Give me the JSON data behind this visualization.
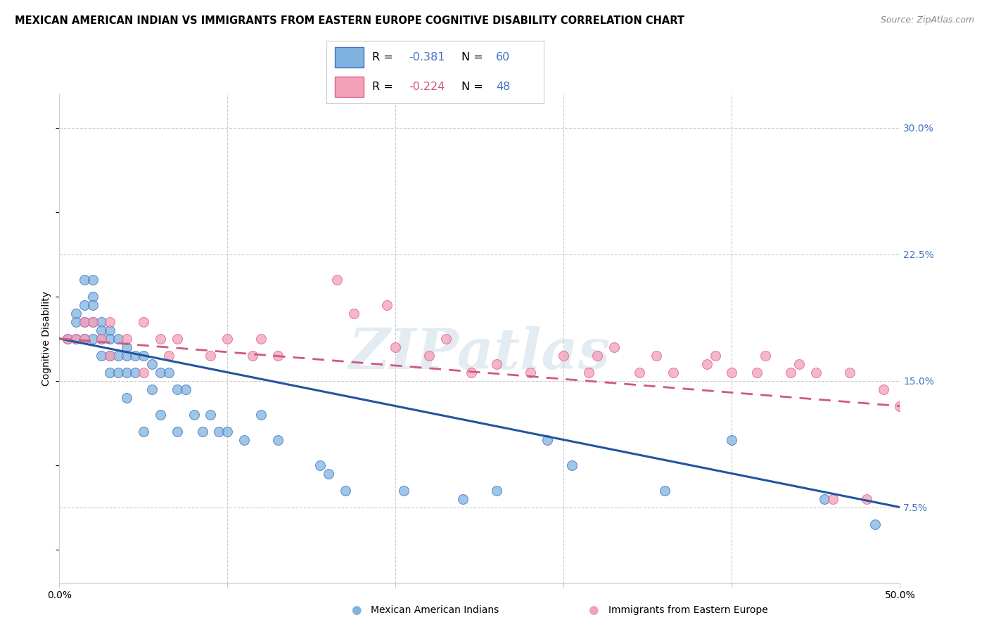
{
  "title": "MEXICAN AMERICAN INDIAN VS IMMIGRANTS FROM EASTERN EUROPE COGNITIVE DISABILITY CORRELATION CHART",
  "source": "Source: ZipAtlas.com",
  "ylabel": "Cognitive Disability",
  "xlim": [
    0.0,
    0.5
  ],
  "ylim": [
    0.03,
    0.32
  ],
  "xticks": [
    0.0,
    0.1,
    0.2,
    0.3,
    0.4,
    0.5
  ],
  "xticklabels": [
    "0.0%",
    "",
    "",
    "",
    "",
    "50.0%"
  ],
  "yticks": [
    0.075,
    0.15,
    0.225,
    0.3
  ],
  "yticklabels": [
    "7.5%",
    "15.0%",
    "22.5%",
    "30.0%"
  ],
  "grid_color": "#cccccc",
  "background_color": "#ffffff",
  "blue_color": "#7fb3e0",
  "pink_color": "#f4a0b8",
  "blue_edge_color": "#4472c4",
  "pink_edge_color": "#e06090",
  "blue_line_color": "#2155a0",
  "pink_line_color": "#d05880",
  "text_blue_color": "#4472c4",
  "text_pink_color": "#d05880",
  "n_blue_color": "#4472c4",
  "r_blue": "-0.381",
  "n_blue": "60",
  "r_pink": "-0.224",
  "n_pink": "48",
  "legend_label_blue": "Mexican American Indians",
  "legend_label_pink": "Immigrants from Eastern Europe",
  "watermark": "ZIPatlas",
  "blue_line_x0": 0.0,
  "blue_line_y0": 0.175,
  "blue_line_x1": 0.5,
  "blue_line_y1": 0.075,
  "pink_line_x0": 0.0,
  "pink_line_y0": 0.175,
  "pink_line_x1": 0.5,
  "pink_line_y1": 0.135,
  "blue_scatter_x": [
    0.005,
    0.01,
    0.01,
    0.01,
    0.015,
    0.015,
    0.015,
    0.015,
    0.02,
    0.02,
    0.02,
    0.02,
    0.02,
    0.025,
    0.025,
    0.025,
    0.025,
    0.03,
    0.03,
    0.03,
    0.03,
    0.035,
    0.035,
    0.035,
    0.04,
    0.04,
    0.04,
    0.04,
    0.045,
    0.045,
    0.05,
    0.05,
    0.055,
    0.055,
    0.06,
    0.06,
    0.065,
    0.07,
    0.07,
    0.075,
    0.08,
    0.085,
    0.09,
    0.095,
    0.1,
    0.11,
    0.12,
    0.13,
    0.155,
    0.16,
    0.17,
    0.205,
    0.24,
    0.26,
    0.29,
    0.305,
    0.36,
    0.4,
    0.455,
    0.485
  ],
  "blue_scatter_y": [
    0.175,
    0.19,
    0.185,
    0.175,
    0.21,
    0.195,
    0.185,
    0.175,
    0.21,
    0.2,
    0.195,
    0.185,
    0.175,
    0.185,
    0.18,
    0.175,
    0.165,
    0.18,
    0.175,
    0.165,
    0.155,
    0.175,
    0.165,
    0.155,
    0.17,
    0.165,
    0.155,
    0.14,
    0.165,
    0.155,
    0.165,
    0.12,
    0.16,
    0.145,
    0.155,
    0.13,
    0.155,
    0.145,
    0.12,
    0.145,
    0.13,
    0.12,
    0.13,
    0.12,
    0.12,
    0.115,
    0.13,
    0.115,
    0.1,
    0.095,
    0.085,
    0.085,
    0.08,
    0.085,
    0.115,
    0.1,
    0.085,
    0.115,
    0.08,
    0.065
  ],
  "pink_scatter_x": [
    0.005,
    0.01,
    0.015,
    0.015,
    0.02,
    0.025,
    0.03,
    0.03,
    0.04,
    0.05,
    0.05,
    0.06,
    0.065,
    0.07,
    0.09,
    0.1,
    0.115,
    0.12,
    0.13,
    0.165,
    0.175,
    0.195,
    0.2,
    0.22,
    0.23,
    0.245,
    0.26,
    0.28,
    0.3,
    0.315,
    0.32,
    0.33,
    0.345,
    0.355,
    0.365,
    0.385,
    0.39,
    0.4,
    0.415,
    0.42,
    0.435,
    0.44,
    0.45,
    0.46,
    0.47,
    0.48,
    0.49,
    0.5
  ],
  "pink_scatter_y": [
    0.175,
    0.175,
    0.185,
    0.175,
    0.185,
    0.175,
    0.185,
    0.165,
    0.175,
    0.185,
    0.155,
    0.175,
    0.165,
    0.175,
    0.165,
    0.175,
    0.165,
    0.175,
    0.165,
    0.21,
    0.19,
    0.195,
    0.17,
    0.165,
    0.175,
    0.155,
    0.16,
    0.155,
    0.165,
    0.155,
    0.165,
    0.17,
    0.155,
    0.165,
    0.155,
    0.16,
    0.165,
    0.155,
    0.155,
    0.165,
    0.155,
    0.16,
    0.155,
    0.08,
    0.155,
    0.08,
    0.145,
    0.135
  ]
}
